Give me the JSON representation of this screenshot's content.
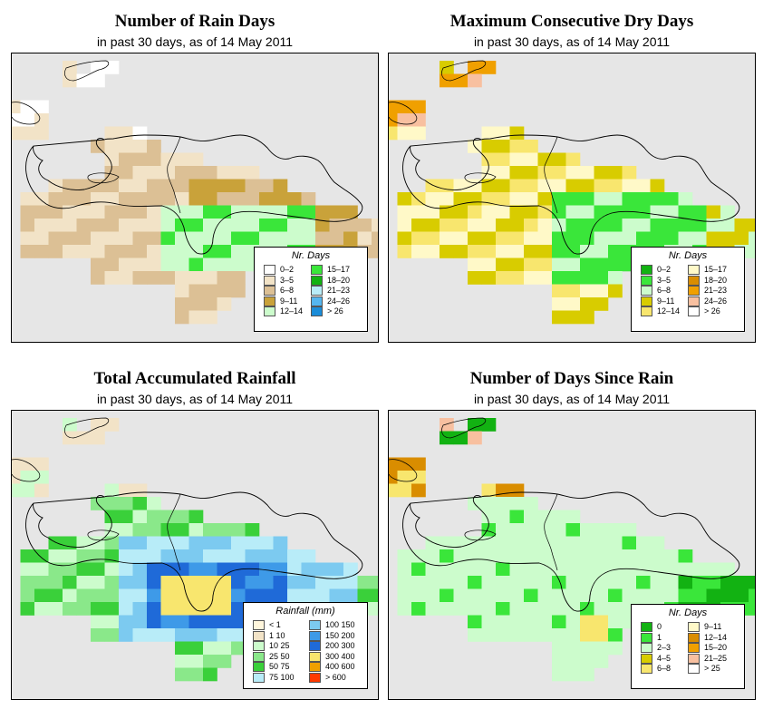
{
  "panels": [
    {
      "title": "Number of Rain Days",
      "subtitle": "in past 30 days, as of  14 May 2011",
      "legend": {
        "title": "Nr. Days",
        "items": [
          {
            "label": "0–2",
            "color": "#ffffff"
          },
          {
            "label": "3–5",
            "color": "#f2e3c7"
          },
          {
            "label": "6–8",
            "color": "#dcc095"
          },
          {
            "label": "9–11",
            "color": "#c9a23a"
          },
          {
            "label": "12–14",
            "color": "#ccfccc"
          },
          {
            "label": "15–17",
            "color": "#3ae63a"
          },
          {
            "label": "18–20",
            "color": "#12b212"
          },
          {
            "label": "21–23",
            "color": "#b8ecf8"
          },
          {
            "label": "24–26",
            "color": "#55b6ef"
          },
          {
            "label": "> 26",
            "color": "#1a8cd8"
          }
        ]
      }
    },
    {
      "title": "Maximum Consecutive Dry Days",
      "subtitle": "in past 30 days, as of  14 May 2011",
      "legend": {
        "title": "Nr. Days",
        "items": [
          {
            "label": "0–2",
            "color": "#12b212"
          },
          {
            "label": "3–5",
            "color": "#3ae63a"
          },
          {
            "label": "6–8",
            "color": "#ccfccc"
          },
          {
            "label": "9–11",
            "color": "#d8cc00"
          },
          {
            "label": "12–14",
            "color": "#f8e66e"
          },
          {
            "label": "15–17",
            "color": "#fff9c8"
          },
          {
            "label": "18–20",
            "color": "#d98d00"
          },
          {
            "label": "21–23",
            "color": "#f0a000"
          },
          {
            "label": "24–26",
            "color": "#f8c0a0"
          },
          {
            "label": "> 26",
            "color": "#ffffff"
          }
        ]
      }
    },
    {
      "title": "Total Accumulated Rainfall",
      "subtitle": "in past 30 days, as of  14 May 2011",
      "legend": {
        "title": "Rainfall (mm)",
        "items": [
          {
            "label": "< 1",
            "color": "#fff6dc"
          },
          {
            "label": "1    10",
            "color": "#f2e3c7"
          },
          {
            "label": "10    25",
            "color": "#ccfccc"
          },
          {
            "label": "25    50",
            "color": "#8ae88a"
          },
          {
            "label": "50    75",
            "color": "#3ad03a"
          },
          {
            "label": "75   100",
            "color": "#b8ecf8"
          },
          {
            "label": "100   150",
            "color": "#7ccaf0"
          },
          {
            "label": "150   200",
            "color": "#3e9ae8"
          },
          {
            "label": "200   300",
            "color": "#1f6ad8"
          },
          {
            "label": "300   400",
            "color": "#f8e66e"
          },
          {
            "label": "400   600",
            "color": "#f0a000"
          },
          {
            "label": "> 600",
            "color": "#ff3a00"
          }
        ]
      }
    },
    {
      "title": "Number of Days Since Rain",
      "subtitle": "in past 30 days, as of  14 May 2011",
      "legend": {
        "title": "Nr. Days",
        "items": [
          {
            "label": "0",
            "color": "#12b212"
          },
          {
            "label": "1",
            "color": "#3ae63a"
          },
          {
            "label": "2–3",
            "color": "#ccfccc"
          },
          {
            "label": "4–5",
            "color": "#d8cc00"
          },
          {
            "label": "6–8",
            "color": "#f8e66e"
          },
          {
            "label": "9–11",
            "color": "#fff9c8"
          },
          {
            "label": "12–14",
            "color": "#d98d00"
          },
          {
            "label": "15–20",
            "color": "#f0a000"
          },
          {
            "label": "21–25",
            "color": "#f8c0a0"
          },
          {
            "label": "> 25",
            "color": "#ffffff"
          }
        ]
      }
    }
  ]
}
